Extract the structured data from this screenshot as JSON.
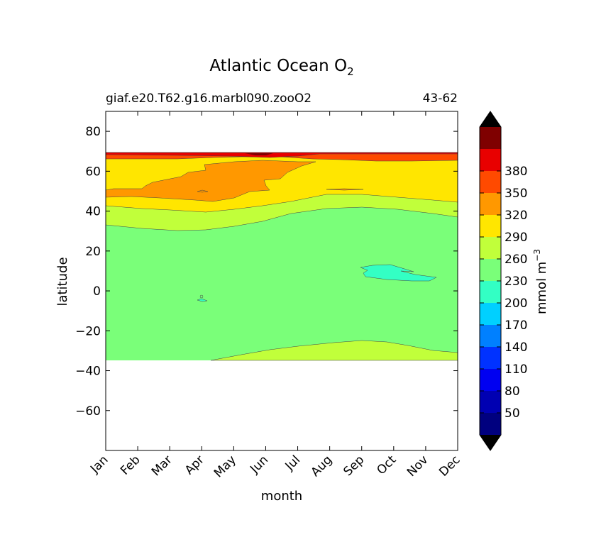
{
  "chart_data": {
    "type": "contour",
    "title": "Atlantic Ocean O",
    "title_subscript": "2",
    "subtitle_left": "giaf.e20.T62.g16.marbl090.zooO2",
    "subtitle_right": "43-62",
    "xlabel": "month",
    "ylabel": "latitude",
    "x_ticks": [
      "Jan",
      "Feb",
      "Mar",
      "Apr",
      "May",
      "Jun",
      "Jul",
      "Aug",
      "Sep",
      "Oct",
      "Nov",
      "Dec"
    ],
    "y_ticks": [
      80,
      60,
      40,
      20,
      0,
      -20,
      -40,
      -60
    ],
    "y_tick_labels": [
      "80",
      "60",
      "40",
      "20",
      "0",
      "−20",
      "−40",
      "−60"
    ],
    "ylim": [
      -80,
      90
    ],
    "colorbar": {
      "label": "mmol m",
      "label_superscript": "−3",
      "levels": [
        50,
        80,
        110,
        140,
        170,
        200,
        230,
        260,
        290,
        320,
        350,
        380
      ],
      "extend": "both"
    },
    "contour_fills": [
      {
        "level_range": [
          230,
          260
        ],
        "color": "#c1ff3a"
      },
      {
        "level_range": [
          200,
          230
        ],
        "color": "#7aff79"
      },
      {
        "level_range": [
          170,
          200
        ],
        "color": "#33ffc4"
      },
      {
        "level_range": [
          260,
          290
        ],
        "color": "#ffe600"
      },
      {
        "level_range": [
          290,
          320
        ],
        "color": "#ff9800"
      },
      {
        "level_range": [
          320,
          350
        ],
        "color": "#ff4a00"
      },
      {
        "level_range": [
          350,
          380
        ],
        "color": "#e80000"
      },
      {
        "level_range": [
          380,
          410
        ],
        "color": "#7f0000"
      }
    ],
    "colormap": [
      "#00007f",
      "#0000b2",
      "#0000f1",
      "#0032ff",
      "#0080ff",
      "#00d0ff",
      "#33ffc4",
      "#7aff79",
      "#c1ff3a",
      "#ffe600",
      "#ff9800",
      "#ff4a00",
      "#e80000",
      "#7f0000"
    ],
    "extend_colors": {
      "low": "#000000",
      "high": "#000000"
    },
    "data_extent_lat": [
      -34,
      69
    ]
  }
}
